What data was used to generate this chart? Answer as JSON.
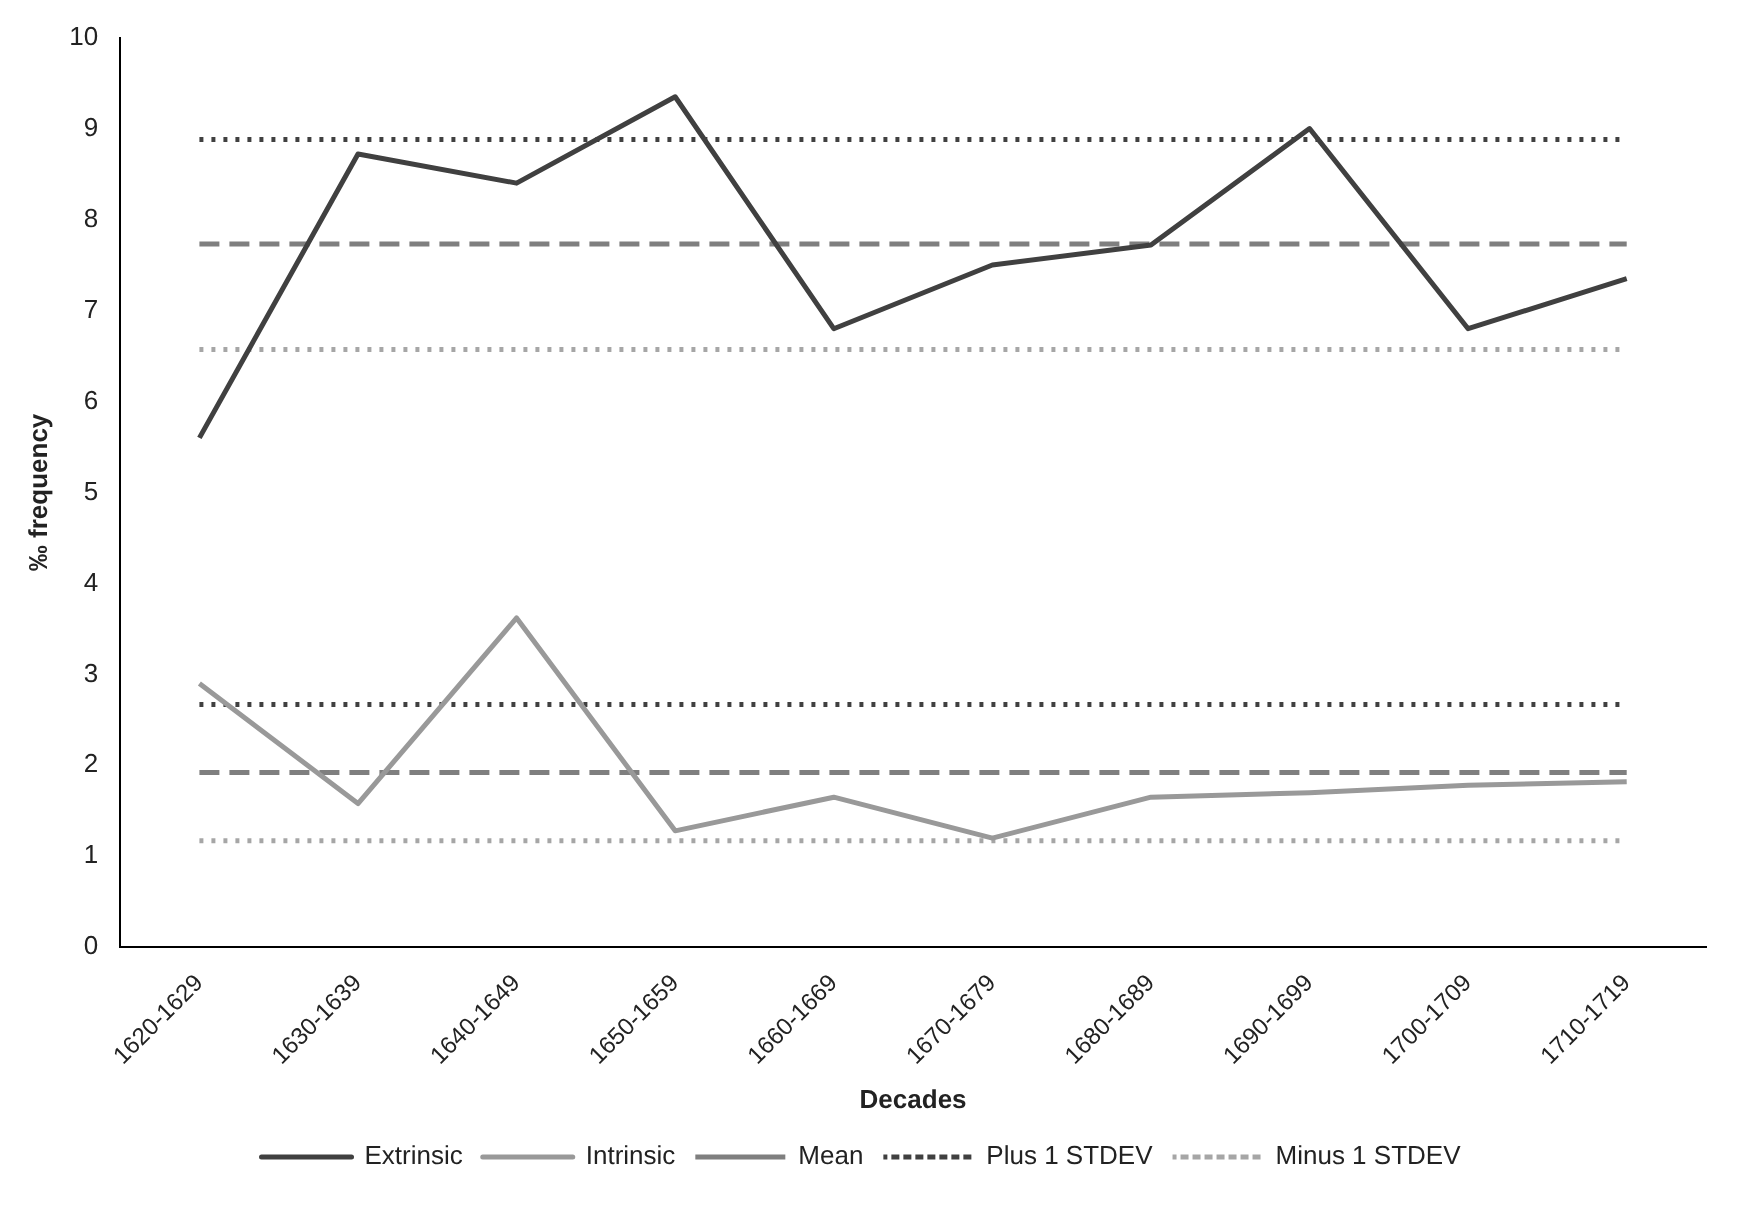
{
  "chart_data": {
    "type": "line",
    "xlabel": "Decades",
    "ylabel": "‰ frequency",
    "categories": [
      "1620-1629",
      "1630-1639",
      "1640-1649",
      "1650-1659",
      "1660-1669",
      "1670-1679",
      "1680-1689",
      "1690-1699",
      "1700-1709",
      "1710-1719"
    ],
    "ylim": [
      0,
      10
    ],
    "yticks": [
      0,
      1,
      2,
      3,
      4,
      5,
      6,
      7,
      8,
      9,
      10
    ],
    "grid": false,
    "legend": "bottom",
    "marker": "none",
    "series": [
      {
        "name": "Extrinsic",
        "color": "#404040",
        "line_style": "solid",
        "values": [
          5.6,
          8.72,
          8.4,
          9.35,
          6.8,
          7.5,
          7.72,
          9.0,
          6.8,
          7.35
        ]
      },
      {
        "name": "Intrinsic",
        "color": "#999999",
        "line_style": "solid",
        "values": [
          2.9,
          1.58,
          3.62,
          1.28,
          1.65,
          1.2,
          1.65,
          1.7,
          1.78,
          1.82
        ]
      },
      {
        "name": "Mean",
        "color": "#7f7f7f",
        "line_style": "dashed",
        "values": [
          7.73,
          7.73,
          7.73,
          7.73,
          7.73,
          7.73,
          7.73,
          7.73,
          7.73,
          7.73
        ]
      },
      {
        "name": "Plus 1 STDEV",
        "color": "#404040",
        "line_style": "dotted",
        "values": [
          8.88,
          8.88,
          8.88,
          8.88,
          8.88,
          8.88,
          8.88,
          8.88,
          8.88,
          8.88
        ]
      },
      {
        "name": "Minus 1 STDEV",
        "color": "#a6a6a6",
        "line_style": "dotted",
        "values": [
          6.57,
          6.57,
          6.57,
          6.57,
          6.57,
          6.57,
          6.57,
          6.57,
          6.57,
          6.57
        ]
      },
      {
        "color": "#7f7f7f",
        "line_style": "dashed",
        "values": [
          1.92,
          1.92,
          1.92,
          1.92,
          1.92,
          1.92,
          1.92,
          1.92,
          1.92,
          1.92
        ]
      },
      {
        "color": "#404040",
        "line_style": "dotted",
        "values": [
          2.67,
          2.67,
          2.67,
          2.67,
          2.67,
          2.67,
          2.67,
          2.67,
          2.67,
          2.67
        ]
      },
      {
        "color": "#a6a6a6",
        "line_style": "dotted",
        "values": [
          1.17,
          1.17,
          1.17,
          1.17,
          1.17,
          1.17,
          1.17,
          1.17,
          1.17,
          1.17
        ]
      }
    ]
  }
}
